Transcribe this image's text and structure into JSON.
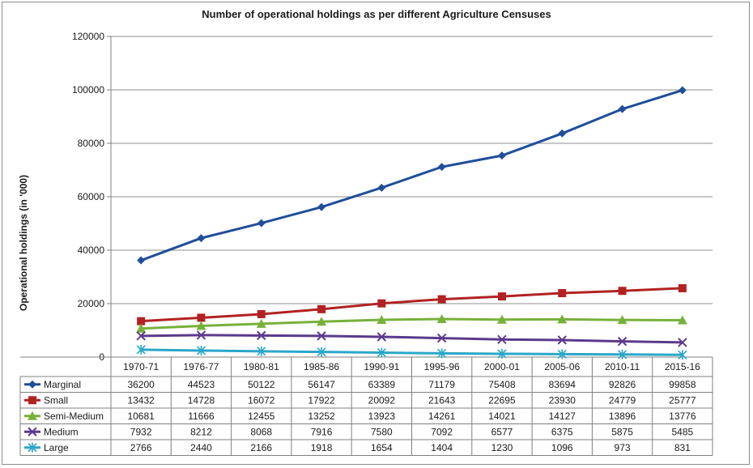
{
  "chart_data": {
    "type": "line",
    "title": "Number of operational holdings as per different Agriculture Censuses",
    "xlabel": "",
    "ylabel": "Operational holdings (in '000)",
    "ylim": [
      0,
      120000
    ],
    "yticks": [
      0,
      20000,
      40000,
      60000,
      80000,
      100000,
      120000
    ],
    "ytick_labels": [
      "0",
      "20000",
      "40000",
      "60000",
      "80000",
      "100000",
      "120000"
    ],
    "grid": true,
    "legend": "data-table",
    "categories": [
      "1970-71",
      "1976-77",
      "1980-81",
      "1985-86",
      "1990-91",
      "1995-96",
      "2000-01",
      "2005-06",
      "2010-11",
      "2015-16"
    ],
    "series": [
      {
        "name": "Marginal",
        "color": "#1f4e9a",
        "marker": "diamond",
        "values": [
          36200,
          44523,
          50122,
          56147,
          63389,
          71179,
          75408,
          83694,
          92826,
          99858
        ]
      },
      {
        "name": "Small",
        "color": "#b22222",
        "marker": "square",
        "values": [
          13432,
          14728,
          16072,
          17922,
          20092,
          21643,
          22695,
          23930,
          24779,
          25777
        ]
      },
      {
        "name": "Semi-Medium",
        "color": "#77b13a",
        "marker": "triangle",
        "values": [
          10681,
          11666,
          12455,
          13252,
          13923,
          14261,
          14021,
          14127,
          13896,
          13776
        ]
      },
      {
        "name": "Medium",
        "color": "#5b3a8c",
        "marker": "x",
        "values": [
          7932,
          8212,
          8068,
          7916,
          7580,
          7092,
          6577,
          6375,
          5875,
          5485
        ]
      },
      {
        "name": "Large",
        "color": "#2aa7c9",
        "marker": "star",
        "values": [
          2766,
          2440,
          2166,
          1918,
          1654,
          1404,
          1230,
          1096,
          973,
          831
        ]
      }
    ]
  }
}
